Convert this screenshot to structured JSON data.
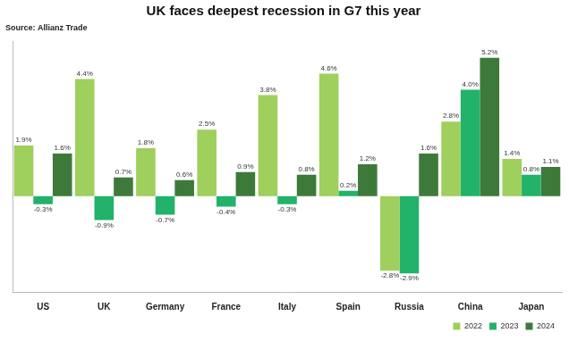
{
  "chart_data": {
    "type": "bar",
    "title": "UK faces deepest recession in G7 this year",
    "subtitle": "Source: Allianz Trade",
    "categories": [
      "US",
      "UK",
      "Germany",
      "France",
      "Italy",
      "Spain",
      "Russia",
      "China",
      "Japan"
    ],
    "series": [
      {
        "name": "2022",
        "color": "#9fcf5c",
        "values": [
          1.9,
          4.4,
          1.8,
          2.5,
          3.8,
          4.6,
          -2.8,
          2.8,
          1.4
        ],
        "value_labels": [
          "1.9%",
          "4.4%",
          "1.8%",
          "2.5%",
          "3.8%",
          "4.6%",
          "-2.8%",
          "2.8%",
          "1.4%"
        ]
      },
      {
        "name": "2023",
        "color": "#22b26a",
        "values": [
          -0.3,
          -0.9,
          -0.7,
          -0.4,
          -0.3,
          0.2,
          -2.9,
          4.0,
          0.8
        ],
        "value_labels": [
          "-0.3%",
          "-0.9%",
          "-0.7%",
          "-0.4%",
          "-0.3%",
          "0.2%",
          "-2.9%",
          "4.0%",
          "0.8%"
        ]
      },
      {
        "name": "2024",
        "color": "#3d7a3a",
        "values": [
          1.6,
          0.7,
          0.6,
          0.9,
          0.8,
          1.2,
          1.6,
          5.2,
          1.1
        ],
        "value_labels": [
          "1.6%",
          "0.7%",
          "0.6%",
          "0.9%",
          "0.8%",
          "1.2%",
          "1.6%",
          "5.2%",
          "1.1%"
        ]
      }
    ],
    "ylim": [
      -3.6,
      5.8
    ],
    "grid": false,
    "legend": "bottom",
    "data_labels": true,
    "tick_labels": "x"
  }
}
